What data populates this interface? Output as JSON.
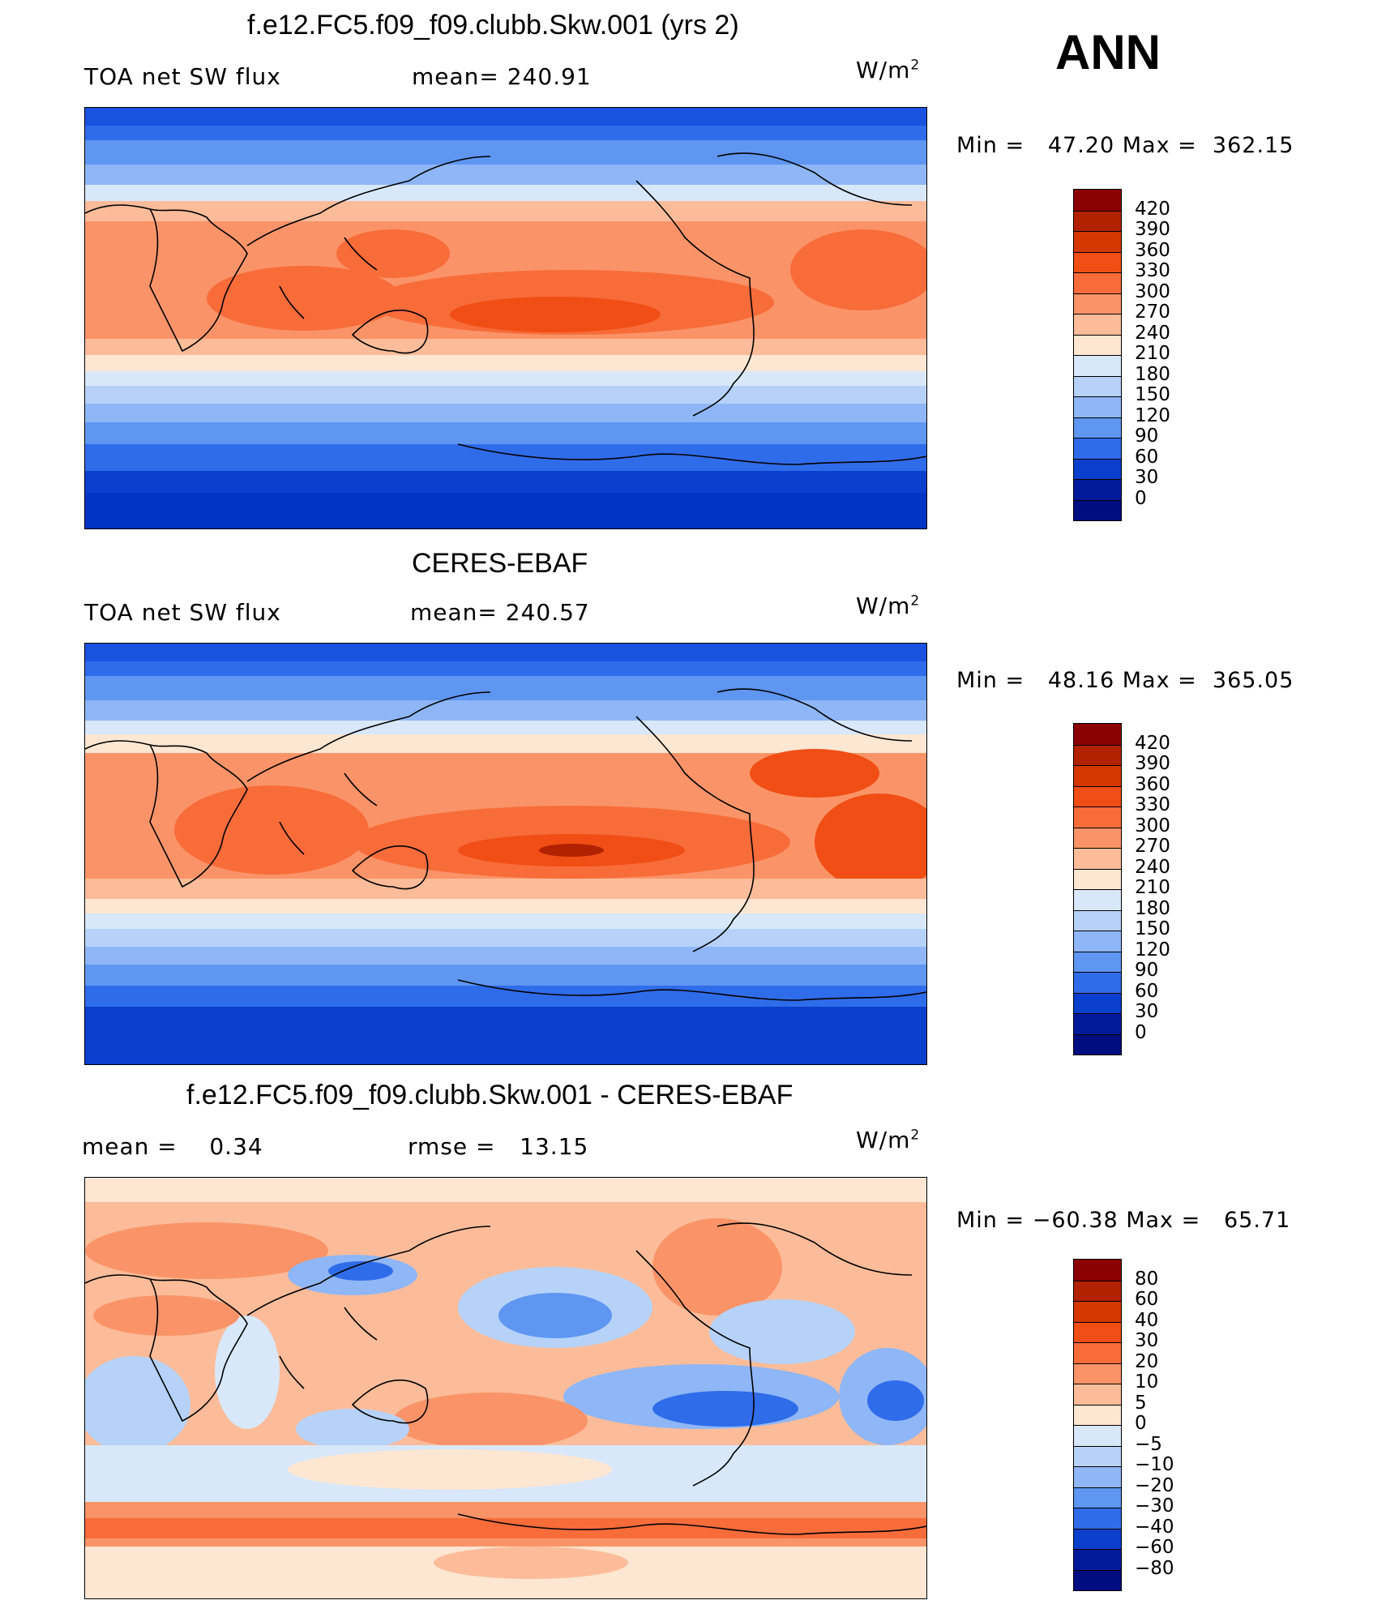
{
  "season": "ANN",
  "panels": [
    {
      "title": "f.e12.FC5.f09_f09.clubb.Skw.001 (yrs 2)",
      "left_label": "TOA net SW flux",
      "mid_label": "mean= 240.91",
      "unit": "W/m",
      "unit_sup": "2",
      "minmax": "Min =   47.20 Max =  362.15",
      "levels": [
        "420",
        "390",
        "360",
        "330",
        "300",
        "270",
        "240",
        "210",
        "180",
        "150",
        "120",
        "90",
        "60",
        "30",
        "0"
      ],
      "colors": [
        "#8b0000",
        "#b22200",
        "#d43800",
        "#f04e14",
        "#f86c3a",
        "#fa9468",
        "#fcbc9a",
        "#fde6d2",
        "#d8e8fa",
        "#b6d2f8",
        "#8fb6f6",
        "#5e96f2",
        "#2f6cea",
        "#0a3fcd",
        "#001a9c",
        "#000d80"
      ]
    },
    {
      "title": "CERES-EBAF",
      "left_label": "TOA net SW flux",
      "mid_label": "mean= 240.57",
      "unit": "W/m",
      "unit_sup": "2",
      "minmax": "Min =   48.16 Max =  365.05",
      "levels": [
        "420",
        "390",
        "360",
        "330",
        "300",
        "270",
        "240",
        "210",
        "180",
        "150",
        "120",
        "90",
        "60",
        "30",
        "0"
      ],
      "colors": [
        "#8b0000",
        "#b22200",
        "#d43800",
        "#f04e14",
        "#f86c3a",
        "#fa9468",
        "#fcbc9a",
        "#fde6d2",
        "#d8e8fa",
        "#b6d2f8",
        "#8fb6f6",
        "#5e96f2",
        "#2f6cea",
        "#0a3fcd",
        "#001a9c",
        "#000d80"
      ]
    },
    {
      "title": "f.e12.FC5.f09_f09.clubb.Skw.001 - CERES-EBAF",
      "left_label": "mean =    0.34",
      "mid_label": "rmse =   13.15",
      "unit": "W/m",
      "unit_sup": "2",
      "minmax": "Min = −60.38 Max =   65.71",
      "levels": [
        "80",
        "60",
        "40",
        "30",
        "20",
        "10",
        "5",
        "0",
        "−5",
        "−10",
        "−20",
        "−30",
        "−40",
        "−60",
        "−80"
      ],
      "colors": [
        "#8b0000",
        "#b22200",
        "#d43800",
        "#f04e14",
        "#f86c3a",
        "#fa9468",
        "#fcbc9a",
        "#fde6d2",
        "#d8e8fa",
        "#b6d2f8",
        "#8fb6f6",
        "#5e96f2",
        "#2f6cea",
        "#0a3fcd",
        "#001a9c",
        "#000d80"
      ]
    }
  ],
  "chart_data": [
    {
      "type": "heatmap",
      "title": "f.e12.FC5.f09_f09.clubb.Skw.001 (yrs 2)",
      "variable": "TOA net SW flux",
      "units": "W/m2",
      "mean": 240.91,
      "min": 47.2,
      "max": 362.15,
      "contour_levels": [
        0,
        30,
        60,
        90,
        120,
        150,
        180,
        210,
        240,
        270,
        300,
        330,
        360,
        390,
        420
      ]
    },
    {
      "type": "heatmap",
      "title": "CERES-EBAF",
      "variable": "TOA net SW flux",
      "units": "W/m2",
      "mean": 240.57,
      "min": 48.16,
      "max": 365.05,
      "contour_levels": [
        0,
        30,
        60,
        90,
        120,
        150,
        180,
        210,
        240,
        270,
        300,
        330,
        360,
        390,
        420
      ]
    },
    {
      "type": "heatmap",
      "title": "f.e12.FC5.f09_f09.clubb.Skw.001 - CERES-EBAF",
      "units": "W/m2",
      "mean": 0.34,
      "rmse": 13.15,
      "min": -60.38,
      "max": 65.71,
      "contour_levels": [
        -80,
        -60,
        -40,
        -30,
        -20,
        -10,
        -5,
        0,
        5,
        10,
        20,
        30,
        40,
        60,
        80
      ]
    }
  ]
}
